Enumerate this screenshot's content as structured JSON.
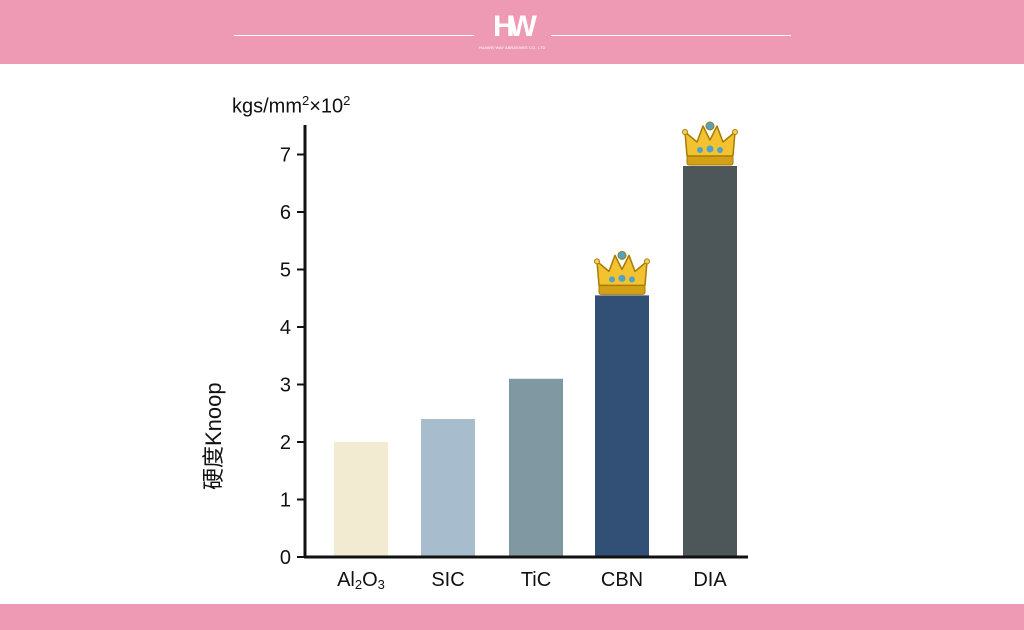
{
  "header": {
    "logo_text": "HW",
    "logo_tagline": "HUAWEI WAY ABRASIVES CO., LTD",
    "band_color": "#ef9ab5"
  },
  "chart_data": {
    "type": "bar",
    "title": "",
    "unit_label": "kgs/mm²×10²",
    "unit_base": "kgs/mm",
    "unit_times": "×10",
    "ylabel": "硬度Knoop",
    "xlabel": "",
    "categories": [
      "Al2O3",
      "SIC",
      "TiC",
      "CBN",
      "DIA"
    ],
    "category_labels": [
      {
        "main": "Al",
        "sub1": "2",
        "main2": "O",
        "sub2": "3"
      },
      {
        "main": "SIC"
      },
      {
        "main": "TiC"
      },
      {
        "main": "CBN"
      },
      {
        "main": "DIA"
      }
    ],
    "values": [
      2.0,
      2.4,
      3.1,
      4.55,
      6.8
    ],
    "colors": [
      "#f3ead2",
      "#a7bccd",
      "#7f98a2",
      "#324f76",
      "#4d5658"
    ],
    "crowned": [
      "CBN",
      "DIA"
    ],
    "ylim": [
      0,
      7.5
    ],
    "yticks": [
      0,
      1,
      2,
      3,
      4,
      5,
      6,
      7
    ],
    "grid": false,
    "legend": "none"
  }
}
